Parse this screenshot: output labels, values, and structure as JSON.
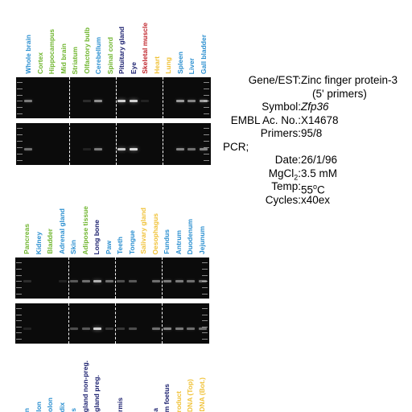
{
  "colors": {
    "blue": "#2b8fd0",
    "green": "#6fb52e",
    "navy": "#1a1f6e",
    "red": "#c0262d",
    "yellow": "#f0c238",
    "gel": "#0b0b0b",
    "band": "#e8e8e8"
  },
  "panel_top": {
    "lanes": [
      {
        "label": "Whole brain",
        "color": "blue"
      },
      {
        "label": "Cortex",
        "color": "green"
      },
      {
        "label": "Hippocampus",
        "color": "green"
      },
      {
        "label": "Mid brain",
        "color": "green"
      },
      {
        "label": "Striatum",
        "color": "green"
      },
      {
        "label": "Olfactory bulb",
        "color": "green"
      },
      {
        "label": "Cerebellum",
        "color": "blue"
      },
      {
        "label": "Spinal cord",
        "color": "green"
      },
      {
        "label": "Pituitary gland",
        "color": "navy"
      },
      {
        "label": "Eye",
        "color": "navy"
      },
      {
        "label": "Skeletal muscle",
        "color": "red"
      },
      {
        "label": "Heart",
        "color": "yellow"
      },
      {
        "label": "Lung",
        "color": "yellow"
      },
      {
        "label": "Spleen",
        "color": "blue"
      },
      {
        "label": "Liver",
        "color": "blue"
      },
      {
        "label": "Gall bladder",
        "color": "blue"
      }
    ],
    "gel1_intensity": [
      0.5,
      0,
      0,
      0,
      0,
      0.15,
      0.6,
      0,
      0.9,
      0.9,
      0.1,
      0,
      0,
      0.65,
      0.55,
      0.65
    ],
    "gel2_intensity": [
      0.45,
      0,
      0,
      0,
      0,
      0.1,
      0.5,
      0,
      0.85,
      0.95,
      0,
      0,
      0,
      0.55,
      0.45,
      0.55
    ]
  },
  "panel_mid": {
    "lanes": [
      {
        "label": "Pancreas",
        "color": "green"
      },
      {
        "label": "Kidney",
        "color": "blue"
      },
      {
        "label": "Bladder",
        "color": "green"
      },
      {
        "label": "Adrenal gland",
        "color": "blue"
      },
      {
        "label": "Skin",
        "color": "blue"
      },
      {
        "label": "Adipose tissue",
        "color": "green"
      },
      {
        "label": "Long bone",
        "color": "navy"
      },
      {
        "label": "Paw",
        "color": "blue"
      },
      {
        "label": "Teeth",
        "color": "blue"
      },
      {
        "label": "Tongue",
        "color": "blue"
      },
      {
        "label": "Salivary gland",
        "color": "yellow"
      },
      {
        "label": "Oesophagus",
        "color": "yellow"
      },
      {
        "label": "Fundus",
        "color": "blue"
      },
      {
        "label": "Antrum",
        "color": "blue"
      },
      {
        "label": "Duodenum",
        "color": "blue"
      },
      {
        "label": "Jejunum",
        "color": "blue"
      }
    ],
    "gel1_intensity": [
      0.15,
      0,
      0,
      0.1,
      0.35,
      0.45,
      0.75,
      0.45,
      0.3,
      0.35,
      0,
      0.45,
      0.5,
      0.5,
      0.45,
      0.45
    ],
    "gel2_intensity": [
      0.1,
      0,
      0,
      0,
      0.3,
      0.35,
      0.9,
      0.2,
      0.2,
      0.3,
      0,
      0.45,
      0.55,
      0.5,
      0.45,
      0.45
    ]
  },
  "panel_bottom": {
    "lanes": [
      {
        "label": "n",
        "color": "blue"
      },
      {
        "label": "lon",
        "color": "blue"
      },
      {
        "label": "olon",
        "color": "blue"
      },
      {
        "label": "dix",
        "color": "blue"
      },
      {
        "label": "s",
        "color": "blue"
      },
      {
        "label": "gland non-preg.",
        "color": "navy"
      },
      {
        "label": "gland preg.",
        "color": "navy"
      },
      {
        "label": "",
        "color": "navy"
      },
      {
        "label": "rmis",
        "color": "navy"
      },
      {
        "label": "",
        "color": "navy"
      },
      {
        "label": "",
        "color": "navy"
      },
      {
        "label": "a",
        "color": "navy"
      },
      {
        "label": "m foetus",
        "color": "navy"
      },
      {
        "label": "roduct",
        "color": "yellow"
      },
      {
        "label": "DNA (Top)",
        "color": "yellow"
      },
      {
        "label": "DNA (Bot.)",
        "color": "yellow"
      }
    ]
  },
  "info": {
    "gene_key": "Gene/EST:",
    "gene_val": "Zinc finger protein-3",
    "gene_val2": "(5' primers)",
    "symbol_key": "Symbol:",
    "symbol_val": "Zfp36",
    "embl_key": "EMBL Ac. No.:",
    "embl_val": "X14678",
    "primers_key": "Primers:",
    "primers_val": "95/8",
    "pcr": "PCR;",
    "date_key": "Date:",
    "date_val": "26/1/96",
    "mgcl_key_a": "MgCl",
    "mgcl_key_sub": "2",
    "mgcl_key_b": ":",
    "mgcl_val": "3.5 mM",
    "temp_key": "Temp:",
    "temp_val_a": "55",
    "temp_val_sup": "o",
    "temp_val_b": "C",
    "cycles_key": "Cycles:",
    "cycles_val": "x40ex"
  }
}
